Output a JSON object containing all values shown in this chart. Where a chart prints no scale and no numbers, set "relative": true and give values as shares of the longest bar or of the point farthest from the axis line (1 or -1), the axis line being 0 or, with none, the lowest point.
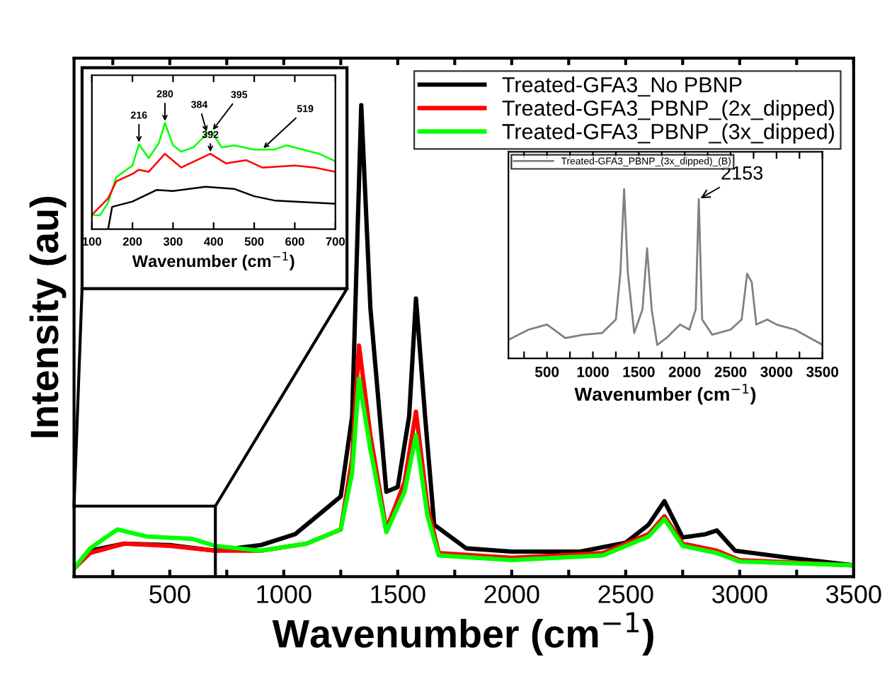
{
  "chart_data": [
    {
      "type": "line",
      "xlabel": "Wavenumber (cm$^{−1}$)",
      "ylabel": "Intensity (au)",
      "relative": true,
      "xlim": [
        80,
        3500
      ],
      "xticks": [
        {
          "value": 250,
          "label": null
        },
        500,
        {
          "value": 750,
          "label": null
        },
        1000,
        {
          "value": 1250,
          "label": null
        },
        1500,
        {
          "value": 1750,
          "label": null
        },
        2000,
        {
          "value": 2250,
          "label": null
        },
        2500,
        {
          "value": 2750,
          "label": null
        },
        3000,
        {
          "value": 3250,
          "label": null
        },
        3500
      ],
      "tick_labels": "x",
      "legend": "top right",
      "grid": false,
      "series": [
        {
          "name": "Treated-GFA3_No PBNP",
          "color": "#000000",
          "x": [
            80,
            150,
            300,
            500,
            700,
            900,
            1050,
            1150,
            1250,
            1300,
            1340,
            1380,
            1450,
            1500,
            1550,
            1580,
            1620,
            1660,
            1800,
            2000,
            2300,
            2500,
            2600,
            2670,
            2750,
            2850,
            2900,
            2980,
            3200,
            3500
          ],
          "values": [
            0.017,
            0.055,
            0.07,
            0.067,
            0.055,
            0.067,
            0.09,
            0.13,
            0.17,
            0.34,
            1.0,
            0.57,
            0.18,
            0.19,
            0.34,
            0.59,
            0.34,
            0.11,
            0.06,
            0.053,
            0.053,
            0.072,
            0.11,
            0.16,
            0.083,
            0.09,
            0.098,
            0.055,
            0.041,
            0.024
          ]
        },
        {
          "name": "Treated-GFA3_PBNP_(2x_dipped)",
          "color": "#ff0000",
          "x": [
            80,
            150,
            300,
            500,
            700,
            900,
            1100,
            1250,
            1300,
            1330,
            1380,
            1450,
            1530,
            1580,
            1630,
            1680,
            2000,
            2400,
            2600,
            2670,
            2750,
            2900,
            3000,
            3500
          ],
          "values": [
            0.017,
            0.05,
            0.07,
            0.065,
            0.055,
            0.055,
            0.07,
            0.1,
            0.25,
            0.49,
            0.3,
            0.1,
            0.2,
            0.35,
            0.15,
            0.05,
            0.04,
            0.05,
            0.09,
            0.128,
            0.07,
            0.055,
            0.035,
            0.024
          ]
        },
        {
          "name": "Treated-GFA3_PBNP_(3x_dipped)",
          "color": "#00ff00",
          "x": [
            80,
            150,
            270,
            400,
            600,
            700,
            900,
            1100,
            1250,
            1300,
            1330,
            1380,
            1450,
            1530,
            1580,
            1630,
            1680,
            2000,
            2400,
            2600,
            2670,
            2750,
            2900,
            3000,
            3500
          ],
          "values": [
            0.017,
            0.06,
            0.1,
            0.085,
            0.08,
            0.065,
            0.055,
            0.07,
            0.1,
            0.22,
            0.42,
            0.27,
            0.094,
            0.18,
            0.3,
            0.13,
            0.045,
            0.035,
            0.045,
            0.085,
            0.122,
            0.065,
            0.05,
            0.032,
            0.024
          ]
        }
      ]
    },
    {
      "type": "line",
      "xlabel": "Wavenumber (cm$^{−1}$)",
      "relative": true,
      "xlim": [
        100,
        700
      ],
      "xticks": [
        100,
        200,
        300,
        400,
        500,
        600,
        700
      ],
      "tick_labels": "x",
      "grid": false,
      "annotations": [
        {
          "text": "216",
          "x": 216,
          "y": 0.8
        },
        {
          "text": "280",
          "x": 280,
          "y": 1.0
        },
        {
          "text": "384",
          "x": 384,
          "y": 0.9
        },
        {
          "text": "395",
          "x": 395,
          "y": 0.92
        },
        {
          "text": "392",
          "x": 392,
          "y": 0.71
        },
        {
          "text": "519",
          "x": 519,
          "y": 0.75
        }
      ],
      "series": [
        {
          "color": "#00ff00",
          "x": [
            100,
            120,
            140,
            160,
            200,
            216,
            240,
            265,
            280,
            300,
            320,
            350,
            384,
            395,
            420,
            450,
            500,
            550,
            580,
            620,
            660,
            700
          ],
          "values": [
            0.135,
            0.13,
            0.25,
            0.49,
            0.6,
            0.8,
            0.67,
            0.81,
            1.0,
            0.79,
            0.73,
            0.77,
            0.9,
            0.92,
            0.77,
            0.79,
            0.75,
            0.75,
            0.79,
            0.75,
            0.71,
            0.64
          ]
        },
        {
          "color": "#ff0000",
          "x": [
            100,
            140,
            160,
            200,
            216,
            240,
            280,
            320,
            392,
            430,
            480,
            520,
            600,
            650,
            700
          ],
          "values": [
            0.135,
            0.29,
            0.45,
            0.52,
            0.56,
            0.54,
            0.71,
            0.58,
            0.71,
            0.62,
            0.65,
            0.58,
            0.6,
            0.58,
            0.54
          ]
        },
        {
          "color": "#000000",
          "x": [
            140,
            150,
            200,
            260,
            300,
            380,
            450,
            500,
            550,
            600,
            700
          ],
          "values": [
            0.0,
            0.21,
            0.26,
            0.37,
            0.36,
            0.4,
            0.38,
            0.31,
            0.27,
            0.26,
            0.24
          ]
        }
      ]
    },
    {
      "type": "line",
      "xlabel": "Wavenumber (cm$^{−1}$)",
      "relative": true,
      "xlim": [
        80,
        3500
      ],
      "xticks": [
        {
          "value": 250,
          "label": null
        },
        500,
        {
          "value": 750,
          "label": null
        },
        1000,
        {
          "value": 1250,
          "label": null
        },
        1500,
        {
          "value": 1750,
          "label": null
        },
        2000,
        {
          "value": 2250,
          "label": null
        },
        2500,
        {
          "value": 2750,
          "label": null
        },
        3000,
        {
          "value": 3250,
          "label": null
        },
        3500
      ],
      "tick_labels": "x",
      "legend": "top left",
      "grid": false,
      "annotations": [
        {
          "text": "2153",
          "x": 2153,
          "y": 0.94
        }
      ],
      "series": [
        {
          "name": "Treated-GFA3_PBNP_(3x_dipped)_(B)",
          "color": "#808080",
          "x": [
            80,
            300,
            500,
            700,
            900,
            1100,
            1250,
            1300,
            1340,
            1380,
            1450,
            1540,
            1590,
            1640,
            1700,
            1800,
            1950,
            2050,
            2120,
            2153,
            2190,
            2300,
            2500,
            2620,
            2680,
            2730,
            2780,
            2900,
            3000,
            3200,
            3500
          ],
          "values": [
            0.11,
            0.17,
            0.2,
            0.12,
            0.14,
            0.15,
            0.23,
            0.51,
            1.0,
            0.51,
            0.15,
            0.29,
            0.65,
            0.29,
            0.08,
            0.12,
            0.2,
            0.17,
            0.29,
            0.94,
            0.23,
            0.14,
            0.17,
            0.23,
            0.5,
            0.45,
            0.2,
            0.23,
            0.2,
            0.17,
            0.08
          ]
        }
      ]
    }
  ]
}
